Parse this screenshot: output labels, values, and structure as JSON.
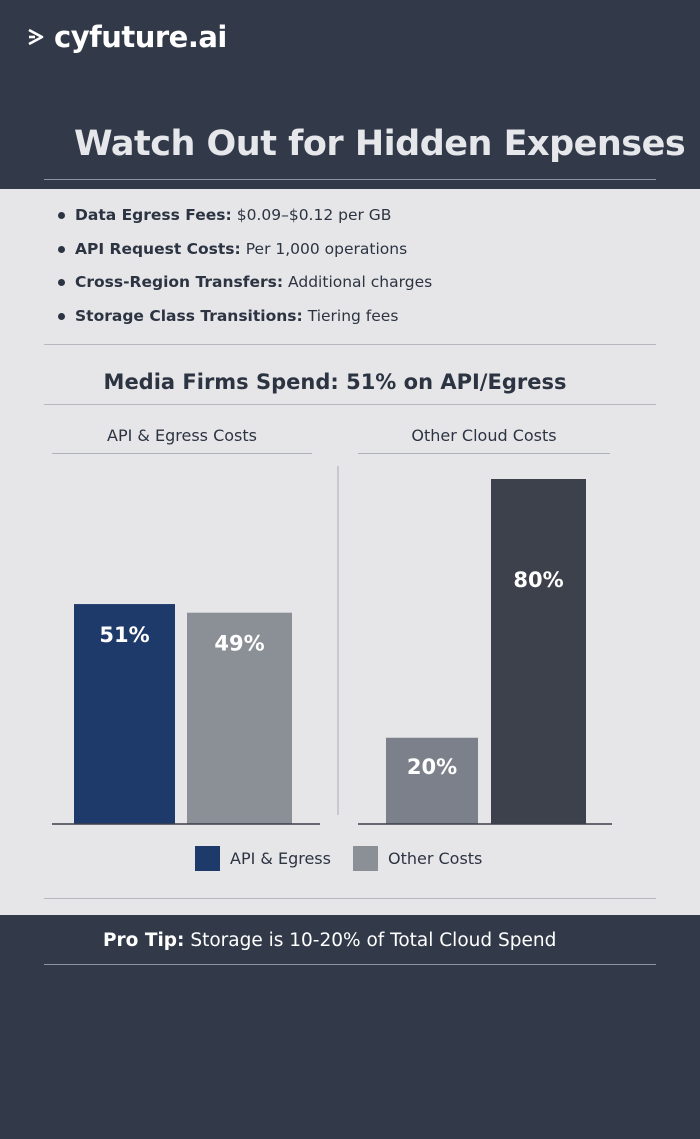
{
  "brand": {
    "name": "cyfuture.ai"
  },
  "title": "Watch Out for Hidden Expenses",
  "bullets": [
    {
      "label": "Data Egress Fees:",
      "text": "$0.09–$0.12 per GB"
    },
    {
      "label": "API Request Costs:",
      "text": "Per 1,000 operations"
    },
    {
      "label": "Cross-Region Transfers:",
      "text": "Additional charges"
    },
    {
      "label": "Storage Class Transitions:",
      "text": "Tiering fees"
    }
  ],
  "colors": {
    "navy": "#1e3a6a",
    "gray": "#8b8f96",
    "slate": "#7b808b",
    "dark": "#3c414c"
  },
  "chart_data": {
    "type": "bar",
    "title": "Media Firms Spend: 51% on API/Egress",
    "unit": "%",
    "ylim": [
      0,
      100
    ],
    "groups": [
      {
        "name": "API & Egress Costs",
        "bars": [
          {
            "label": "51%",
            "value": 51,
            "series": "API & Egress"
          },
          {
            "label": "49%",
            "value": 49,
            "series": "Other Costs"
          }
        ]
      },
      {
        "name": "Other Cloud Costs",
        "bars": [
          {
            "label": "20%",
            "value": 20,
            "series": "Other Costs"
          },
          {
            "label": "80%",
            "value": 80,
            "series": "Other Costs"
          }
        ]
      }
    ],
    "legend": [
      {
        "name": "API & Egress",
        "color": "#1e3a6a"
      },
      {
        "name": "Other Costs",
        "color": "#8b8f96"
      }
    ]
  },
  "pro_tip": {
    "label": "Pro Tip:",
    "text": "Storage is 10-20% of Total Cloud Spend"
  }
}
